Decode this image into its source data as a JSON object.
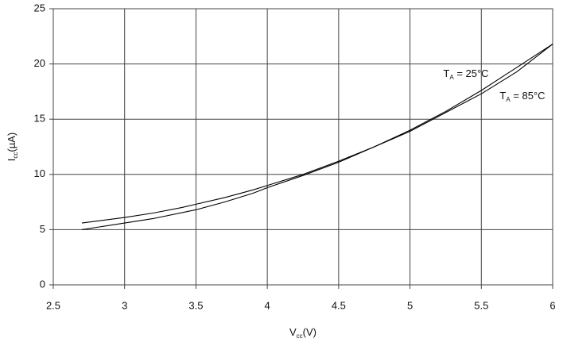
{
  "chart_data": {
    "type": "line",
    "x_label_parts": [
      "V",
      "cc",
      "(V)"
    ],
    "y_label_parts": [
      "I",
      "cc",
      "(µA)"
    ],
    "xlim": [
      2.5,
      6
    ],
    "xticks": [
      2.5,
      3,
      3.5,
      4,
      4.5,
      5,
      5.5,
      6
    ],
    "ylim": [
      0,
      25
    ],
    "yticks": [
      0,
      5,
      10,
      15,
      20,
      25
    ],
    "grid": true,
    "series": [
      {
        "name_parts": [
          "T",
          "A",
          " = 25°C"
        ],
        "color": "#000000",
        "x": [
          2.7,
          3.0,
          3.2,
          3.4,
          3.5,
          3.7,
          3.9,
          4.0,
          4.25,
          4.5,
          4.75,
          5.0,
          5.25,
          5.5,
          5.75,
          6.0
        ],
        "values": [
          5.6,
          6.1,
          6.5,
          7.0,
          7.3,
          7.9,
          8.6,
          9.0,
          10.0,
          11.2,
          12.5,
          13.9,
          15.6,
          17.3,
          19.3,
          21.8
        ]
      },
      {
        "name_parts": [
          "T",
          "A",
          " = 85°C"
        ],
        "color": "#000000",
        "x": [
          2.7,
          3.0,
          3.2,
          3.5,
          3.7,
          3.9,
          4.0,
          4.25,
          4.5,
          4.75,
          5.0,
          5.25,
          5.5,
          5.75,
          6.0
        ],
        "values": [
          5.0,
          5.6,
          6.0,
          6.8,
          7.5,
          8.3,
          8.8,
          9.9,
          11.1,
          12.5,
          14.0,
          15.7,
          17.6,
          19.7,
          21.8
        ]
      }
    ]
  }
}
